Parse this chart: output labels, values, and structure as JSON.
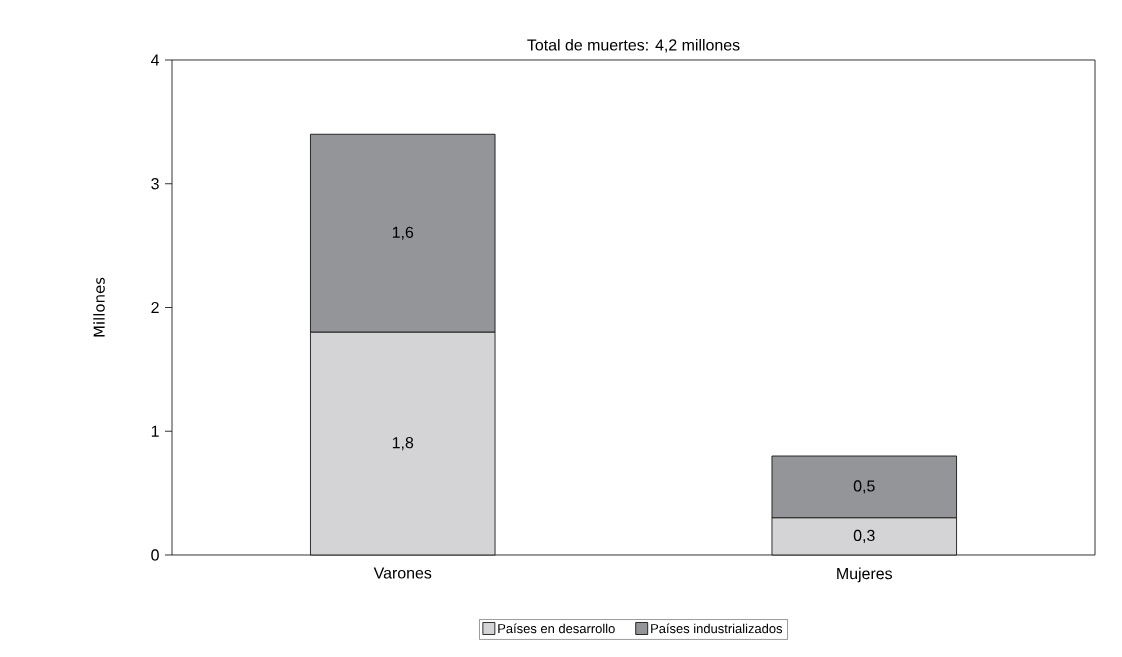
{
  "chart_data": {
    "type": "bar",
    "title": "Total de muertes: 4,2 millones",
    "ylabel": "Millones",
    "categories": [
      "Varones",
      "Mujeres"
    ],
    "stacked": true,
    "series": [
      {
        "name": "Países en desarrollo",
        "color": "#d4d4d6",
        "values": [
          1.8,
          0.3
        ],
        "value_labels": [
          "1,8",
          "0,3"
        ]
      },
      {
        "name": "Países industrializados",
        "color": "#939598",
        "values": [
          1.6,
          0.5
        ],
        "value_labels": [
          "1,6",
          "0,5"
        ]
      }
    ],
    "ylim": [
      0,
      4
    ],
    "yticks": [
      0,
      1,
      2,
      3,
      4
    ],
    "legend": "bottom"
  }
}
